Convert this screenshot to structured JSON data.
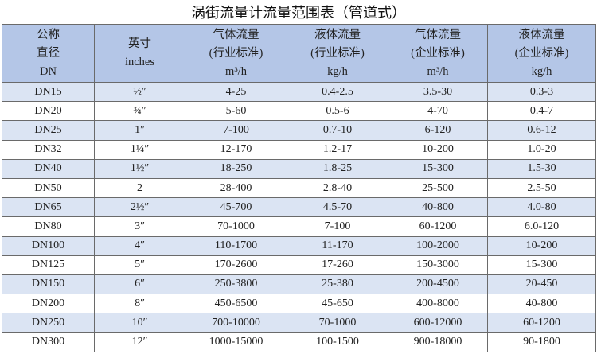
{
  "table": {
    "title": "涡街流量计流量范围表（管道式）",
    "headers": [
      [
        "公称",
        "直径",
        "DN"
      ],
      [
        "英寸",
        "inches"
      ],
      [
        "气体流量",
        "(行业标准)",
        "m³/h"
      ],
      [
        "液体流量",
        "(行业标准)",
        "kg/h"
      ],
      [
        "气体流量",
        "(企业标准)",
        "m³/h"
      ],
      [
        "液体流量",
        "(企业标准)",
        "kg/h"
      ]
    ],
    "rows": [
      [
        "DN15",
        "½″",
        "4-25",
        "0.4-2.5",
        "3.5-30",
        "0.3-3"
      ],
      [
        "DN20",
        "¾″",
        "5-60",
        "0.5-6",
        "4-70",
        "0.4-7"
      ],
      [
        "DN25",
        "1″",
        "7-100",
        "0.7-10",
        "6-120",
        "0.6-12"
      ],
      [
        "DN32",
        "1¼″",
        "12-170",
        "1.2-17",
        "10-200",
        "1.0-20"
      ],
      [
        "DN40",
        "1½″",
        "18-250",
        "1.8-25",
        "15-300",
        "1.5-30"
      ],
      [
        "DN50",
        "2",
        "28-400",
        "2.8-40",
        "25-500",
        "2.5-50"
      ],
      [
        "DN65",
        "2½″",
        "45-700",
        "4.5-70",
        "40-800",
        "4.0-80"
      ],
      [
        "DN80",
        "3″",
        "70-1000",
        "7-100",
        "60-1200",
        "6.0-120"
      ],
      [
        "DN100",
        "4″",
        "110-1700",
        "11-170",
        "100-2000",
        "10-200"
      ],
      [
        "DN125",
        "5″",
        "170-2600",
        "17-260",
        "150-3000",
        "15-300"
      ],
      [
        "DN150",
        "6″",
        "250-3800",
        "25-380",
        "200-4500",
        "20-450"
      ],
      [
        "DN200",
        "8″",
        "450-6500",
        "45-650",
        "400-8000",
        "40-800"
      ],
      [
        "DN250",
        "10″",
        "700-10000",
        "70-1000",
        "600-12000",
        "60-1200"
      ],
      [
        "DN300",
        "12″",
        "1000-15000",
        "100-1500",
        "900-18000",
        "90-1800"
      ]
    ]
  }
}
